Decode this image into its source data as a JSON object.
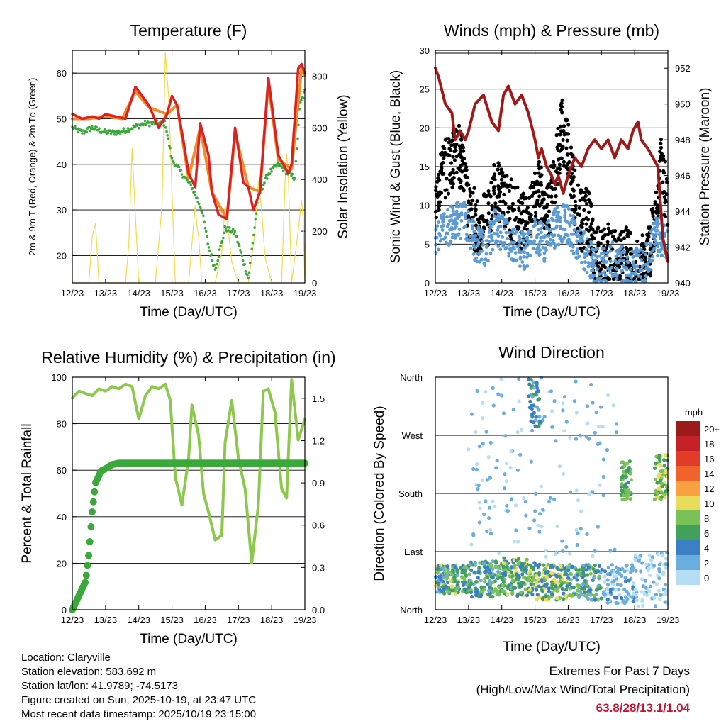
{
  "colors": {
    "temp2m": "#e02020",
    "temp9m": "#f28c28",
    "dewpoint": "#3aa83a",
    "solar": "#f5d94a",
    "gust": "#000000",
    "wind": "#5b9bd5",
    "pressure": "#a01818",
    "rh": "#8cc84b",
    "precip": "#3aa83a",
    "extremes": "#c8102e"
  },
  "chart_data": [
    {
      "type": "line",
      "title": "Temperature (F)",
      "xlabel": "Time (Day/UTC)",
      "ylabel": "2m & 9m T (Red, Orange) & 2m Td (Green)",
      "y2label": "Solar Insolation (Yellow)",
      "x_ticks": [
        "12/23",
        "13/23",
        "14/23",
        "15/23",
        "16/23",
        "17/23",
        "18/23",
        "19/23"
      ],
      "xlim": [
        0,
        7
      ],
      "ylim": [
        14,
        65
      ],
      "y_ticks": [
        20,
        30,
        40,
        50,
        60
      ],
      "y2lim": [
        0,
        900
      ],
      "y2_ticks": [
        0,
        200,
        400,
        600,
        800
      ],
      "series": [
        {
          "name": "2m T",
          "axis": "left",
          "x": [
            0,
            0.3,
            0.6,
            0.8,
            1.0,
            1.3,
            1.6,
            1.9,
            2.1,
            2.3,
            2.6,
            2.85,
            3.0,
            3.15,
            3.35,
            3.5,
            3.7,
            3.85,
            4.1,
            4.2,
            4.4,
            4.65,
            4.9,
            5.15,
            5.3,
            5.45,
            5.65,
            5.9,
            6.2,
            6.5,
            6.6,
            6.8,
            6.9,
            7.0
          ],
          "values": [
            51,
            50,
            50.5,
            50,
            51,
            50.5,
            50,
            57,
            55,
            53,
            48,
            51,
            55,
            53,
            45,
            38,
            35,
            49,
            42,
            34,
            29,
            28,
            48,
            36,
            35,
            30,
            34,
            59,
            42,
            38,
            40,
            61,
            62,
            60
          ]
        },
        {
          "name": "9m T",
          "axis": "left",
          "x": [
            0,
            0.5,
            1.0,
            1.5,
            1.9,
            2.3,
            2.85,
            3.15,
            3.5,
            3.85,
            4.2,
            4.65,
            4.9,
            5.3,
            5.65,
            5.9,
            6.2,
            6.6,
            6.9,
            7.0
          ],
          "values": [
            50,
            50,
            50.5,
            50,
            56,
            52.5,
            51,
            53,
            37,
            48,
            34,
            28,
            47,
            35,
            34,
            58,
            41,
            39,
            61,
            59.5
          ]
        },
        {
          "name": "2m Td",
          "axis": "left",
          "x": [
            0,
            0.3,
            0.6,
            1.0,
            1.4,
            1.8,
            2.2,
            2.5,
            2.8,
            3.0,
            3.3,
            3.6,
            3.9,
            4.1,
            4.3,
            4.6,
            4.9,
            5.1,
            5.3,
            5.6,
            5.9,
            6.2,
            6.5,
            6.7,
            6.85,
            7.0
          ],
          "values": [
            48,
            47,
            48,
            47,
            47,
            48,
            49,
            49,
            49,
            41,
            38,
            35,
            30,
            22,
            17,
            26,
            25,
            20,
            15,
            33,
            38,
            40,
            38,
            37,
            53,
            56
          ]
        },
        {
          "name": "Solar",
          "axis": "right",
          "x": [
            0,
            0.5,
            0.6,
            0.7,
            0.8,
            1.2,
            1.6,
            1.7,
            1.8,
            1.9,
            2.0,
            2.5,
            2.7,
            2.8,
            2.9,
            3.0,
            3.1,
            3.5,
            3.6,
            3.7,
            3.75,
            3.8,
            3.9,
            4.3,
            4.5,
            4.6,
            4.7,
            4.8,
            5.0,
            5.3,
            5.5,
            5.6,
            5.7,
            5.8,
            6.0,
            6.3,
            6.4,
            6.45,
            6.5,
            6.6,
            6.8,
            6.9,
            6.95,
            7.0
          ],
          "values": [
            0,
            0,
            180,
            230,
            0,
            0,
            0,
            150,
            520,
            260,
            0,
            0,
            300,
            890,
            720,
            350,
            0,
            0,
            150,
            300,
            220,
            180,
            0,
            0,
            120,
            300,
            200,
            80,
            0,
            0,
            200,
            390,
            280,
            100,
            0,
            0,
            380,
            500,
            420,
            0,
            200,
            320,
            250,
            0
          ]
        }
      ]
    },
    {
      "type": "scatter",
      "title": "Winds (mph) & Pressure (mb)",
      "xlabel": "Time (Day/UTC)",
      "ylabel": "Sonic Wind & Gust (Blue, Black)",
      "y2label": "Station Pressure (Maroon)",
      "x_ticks": [
        "12/23",
        "13/23",
        "14/23",
        "15/23",
        "16/23",
        "17/23",
        "18/23",
        "19/23"
      ],
      "xlim": [
        0,
        7
      ],
      "ylim": [
        0,
        30
      ],
      "y_ticks": [
        0,
        5,
        10,
        15,
        20,
        25,
        30
      ],
      "y2lim": [
        940,
        953
      ],
      "y2_ticks": [
        940,
        942,
        944,
        946,
        948,
        950,
        952
      ],
      "series": [
        {
          "name": "Sonic Wind",
          "axis": "left",
          "x": [
            0,
            0.3,
            0.6,
            0.9,
            1.2,
            1.5,
            1.8,
            2.1,
            2.4,
            2.7,
            3.0,
            3.3,
            3.6,
            3.9,
            4.2,
            4.5,
            4.8,
            5.1,
            5.4,
            5.7,
            6.0,
            6.3,
            6.6,
            6.9,
            7.0
          ],
          "values": [
            6,
            7,
            8,
            8,
            5,
            4,
            7,
            6,
            5,
            4,
            6,
            5,
            7,
            8,
            6,
            4,
            2,
            2,
            3,
            2,
            2,
            2,
            6,
            6,
            5
          ]
        },
        {
          "name": "Gust",
          "axis": "left",
          "x": [
            0,
            0.2,
            0.4,
            0.6,
            0.8,
            1.0,
            1.2,
            1.4,
            1.6,
            1.8,
            2.0,
            2.2,
            2.4,
            2.6,
            2.8,
            3.0,
            3.2,
            3.4,
            3.6,
            3.8,
            4.0,
            4.2,
            4.4,
            4.6,
            4.8,
            5.0,
            5.2,
            5.4,
            5.6,
            5.8,
            6.0,
            6.2,
            6.4,
            6.6,
            6.8,
            7.0
          ],
          "values": [
            12,
            14,
            15,
            17,
            16,
            10,
            8,
            7,
            9,
            12,
            11,
            10,
            9,
            8,
            8,
            11,
            12,
            9,
            14,
            20,
            17,
            11,
            8,
            9,
            4,
            3,
            4,
            3,
            4,
            3,
            2,
            2,
            3,
            8,
            15,
            10
          ]
        },
        {
          "name": "Station Pressure",
          "axis": "right",
          "x": [
            0,
            0.1,
            0.3,
            0.5,
            0.6,
            0.75,
            0.9,
            1.0,
            1.2,
            1.45,
            1.7,
            1.9,
            2.05,
            2.2,
            2.4,
            2.6,
            2.8,
            3.0,
            3.1,
            3.2,
            3.35,
            3.5,
            3.6,
            3.7,
            3.85,
            4.0,
            4.2,
            4.4,
            4.6,
            4.8,
            5.0,
            5.2,
            5.4,
            5.6,
            5.8,
            5.95,
            6.1,
            6.2,
            6.4,
            6.55,
            6.7,
            6.85,
            7.0
          ],
          "values": [
            952,
            951.5,
            950,
            949.5,
            948,
            948.5,
            948,
            948.5,
            950,
            950.5,
            949,
            948.5,
            950.5,
            951,
            950,
            950.5,
            949.5,
            948,
            947,
            947.5,
            946.5,
            946,
            945.5,
            946,
            945,
            946,
            947,
            946.5,
            947.5,
            948,
            947.5,
            948,
            947,
            948,
            947.5,
            948.5,
            949,
            948,
            947.5,
            947,
            946.5,
            942.5,
            941.2
          ]
        }
      ]
    },
    {
      "type": "line",
      "title": "Relative Humidity (%) & Precipitation (in)",
      "xlabel": "Time (Day/UTC)",
      "ylabel": "Percent & Total Rainfall",
      "x_ticks": [
        "12/23",
        "13/23",
        "14/23",
        "15/23",
        "16/23",
        "17/23",
        "18/23",
        "19/23"
      ],
      "xlim": [
        0,
        7
      ],
      "ylim": [
        0,
        100
      ],
      "y_ticks": [
        0,
        20,
        40,
        60,
        80,
        100
      ],
      "y2lim": [
        0,
        1.65
      ],
      "y2_ticks": [
        "0.0",
        "0.3",
        "0.6",
        "0.9",
        "1.2",
        "1.5"
      ],
      "series": [
        {
          "name": "Relative Humidity",
          "axis": "left",
          "x": [
            0,
            0.2,
            0.4,
            0.6,
            0.8,
            1.0,
            1.2,
            1.4,
            1.6,
            1.8,
            2.0,
            2.2,
            2.4,
            2.6,
            2.8,
            2.95,
            3.1,
            3.3,
            3.5,
            3.6,
            3.8,
            3.95,
            4.1,
            4.3,
            4.5,
            4.6,
            4.8,
            5.0,
            5.2,
            5.4,
            5.6,
            5.75,
            5.9,
            6.1,
            6.3,
            6.45,
            6.6,
            6.8,
            7.0
          ],
          "values": [
            91,
            94,
            93,
            92,
            95,
            94,
            96,
            95,
            97,
            96,
            82,
            92,
            96,
            95,
            97,
            90,
            57,
            45,
            65,
            88,
            75,
            50,
            42,
            30,
            32,
            72,
            90,
            65,
            52,
            20,
            45,
            94,
            95,
            85,
            52,
            48,
            99,
            73,
            82
          ]
        },
        {
          "name": "Total Precipitation",
          "axis": "right",
          "x": [
            0,
            0.1,
            0.2,
            0.3,
            0.4,
            0.5,
            0.6,
            0.7,
            0.8,
            0.85,
            0.9,
            1.0,
            1.2,
            1.4,
            2.0,
            3.0,
            4.0,
            5.0,
            6.0,
            7.0
          ],
          "values": [
            0,
            0.05,
            0.1,
            0.15,
            0.2,
            0.4,
            0.7,
            0.9,
            0.95,
            0.98,
            0.99,
            1.0,
            1.03,
            1.04,
            1.04,
            1.04,
            1.04,
            1.04,
            1.04,
            1.04
          ]
        }
      ]
    },
    {
      "type": "scatter",
      "title": "Wind Direction",
      "xlabel": "Time (Day/UTC)",
      "ylabel": "Direction (Colored By Speed)",
      "x_ticks": [
        "12/23",
        "13/23",
        "14/23",
        "15/23",
        "16/23",
        "17/23",
        "18/23",
        "19/23"
      ],
      "xlim": [
        0,
        7
      ],
      "ylim": [
        0,
        360
      ],
      "y_ticks": [
        "North",
        "East",
        "South",
        "West",
        "North"
      ],
      "legend_title": "mph",
      "legend_labels": [
        "20+",
        "18",
        "16",
        "14",
        "12",
        "10",
        "8",
        "6",
        "4",
        "2",
        "0"
      ],
      "legend_colors": [
        "#9b1b1b",
        "#c42127",
        "#e23b2a",
        "#f0642c",
        "#f9a040",
        "#e9dc5a",
        "#7ac15a",
        "#41a05a",
        "#3b7fc4",
        "#6aaee0",
        "#b5def5"
      ],
      "clusters": [
        {
          "x": [
            0,
            1.0
          ],
          "dir": [
            25,
            70
          ],
          "speed": [
            2,
            10
          ],
          "n": 140
        },
        {
          "x": [
            1.0,
            2.0
          ],
          "dir": [
            20,
            75
          ],
          "speed": [
            2,
            9
          ],
          "n": 130
        },
        {
          "x": [
            2.0,
            3.0
          ],
          "dir": [
            20,
            80
          ],
          "speed": [
            3,
            10
          ],
          "n": 150
        },
        {
          "x": [
            3.0,
            4.0
          ],
          "dir": [
            15,
            70
          ],
          "speed": [
            3,
            11
          ],
          "n": 140
        },
        {
          "x": [
            4.0,
            5.0
          ],
          "dir": [
            15,
            70
          ],
          "speed": [
            2,
            9
          ],
          "n": 120
        },
        {
          "x": [
            5.0,
            6.0
          ],
          "dir": [
            10,
            70
          ],
          "speed": [
            0,
            4
          ],
          "n": 90
        },
        {
          "x": [
            6.0,
            7.0
          ],
          "dir": [
            5,
            90
          ],
          "speed": [
            0,
            2
          ],
          "n": 80
        },
        {
          "x": [
            5.6,
            5.9
          ],
          "dir": [
            170,
            230
          ],
          "speed": [
            4,
            9
          ],
          "n": 60
        },
        {
          "x": [
            6.6,
            7.0
          ],
          "dir": [
            170,
            240
          ],
          "speed": [
            5,
            11
          ],
          "n": 70
        },
        {
          "x": [
            1.0,
            5.5
          ],
          "dir": [
            80,
            360
          ],
          "speed": [
            0,
            3
          ],
          "n": 160
        },
        {
          "x": [
            2.8,
            3.2
          ],
          "dir": [
            280,
            360
          ],
          "speed": [
            2,
            6
          ],
          "n": 40
        }
      ]
    }
  ],
  "info": {
    "location": "Location: Claryville",
    "elevation": "Station elevation: 583.692 m",
    "latlon": "Station lat/lon: 41.9789; -74.5173",
    "created": "Figure created on Sun, 2025-10-19, at 23:47 UTC",
    "recent": "Most recent data timestamp: 2025/10/19 23:15:00"
  },
  "extremes": {
    "title": "Extremes For Past 7 Days",
    "subtitle": "(High/Low/Max Wind/Total Precipitation)",
    "values": "63.8/28/13.1/1.04"
  }
}
